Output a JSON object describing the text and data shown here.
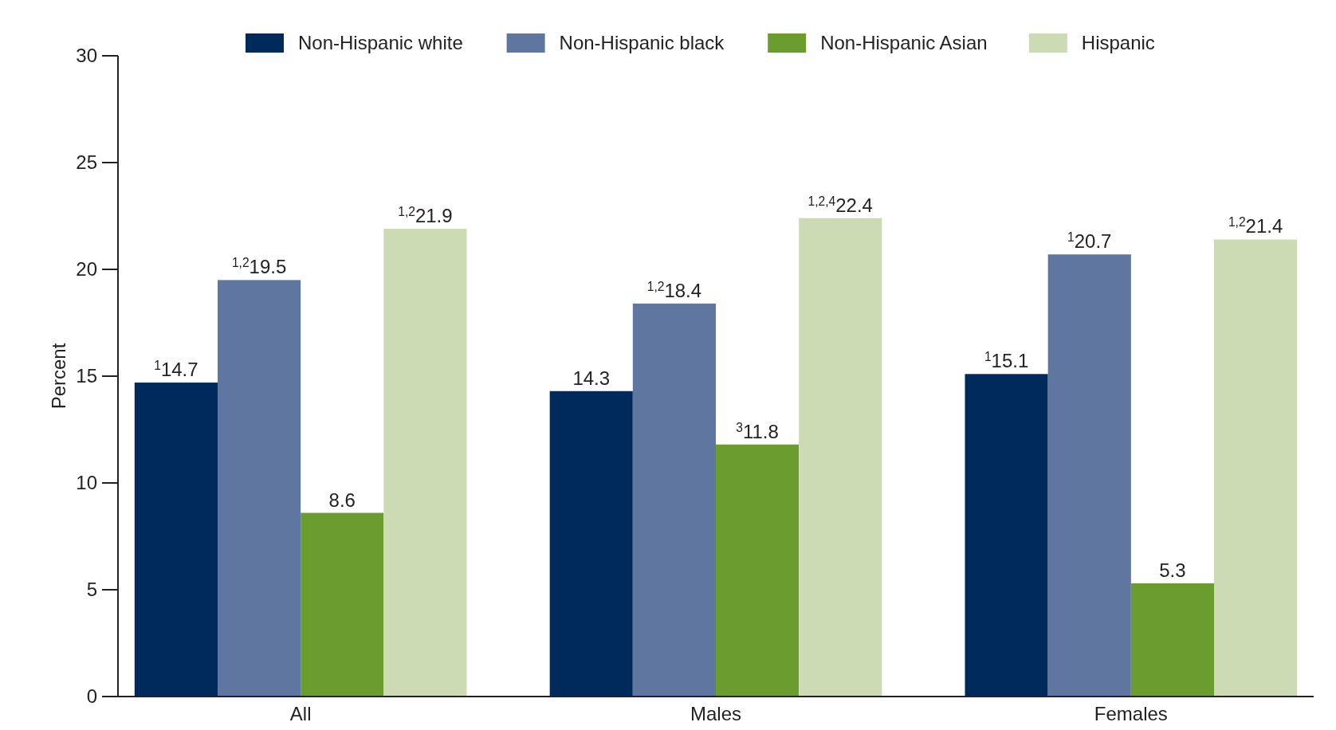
{
  "chart_data": {
    "type": "bar",
    "ylabel": "Percent",
    "categories": [
      "All",
      "Males",
      "Females"
    ],
    "series": [
      {
        "name": "Non-Hispanic white",
        "color": "#002a5c",
        "values": [
          14.7,
          14.3,
          15.1
        ],
        "value_labels": [
          "$^{1}$14.7",
          "14.3",
          "$^{1}$15.1"
        ]
      },
      {
        "name": "Non-Hispanic black",
        "color": "#5f77a0",
        "values": [
          19.5,
          18.4,
          20.7
        ],
        "value_labels": [
          "$^{1,2}$19.5",
          "$^{1,2}$18.4",
          "$^{1}$20.7"
        ]
      },
      {
        "name": "Non-Hispanic Asian",
        "color": "#6b9c2f",
        "values": [
          8.6,
          11.8,
          5.3
        ],
        "value_labels": [
          "8.6",
          "$^{3}$11.8",
          "5.3"
        ]
      },
      {
        "name": "Hispanic",
        "color": "#cddbb5",
        "values": [
          21.9,
          22.4,
          21.4
        ],
        "value_labels": [
          "$^{1,2}$21.9",
          "$^{1,2,4}$22.4",
          "$^{1,2}$21.4"
        ]
      }
    ],
    "ylim": [
      0,
      30
    ],
    "yticks": [
      0,
      5,
      10,
      15,
      20,
      25,
      30
    ],
    "legend": "top",
    "grid": false
  }
}
